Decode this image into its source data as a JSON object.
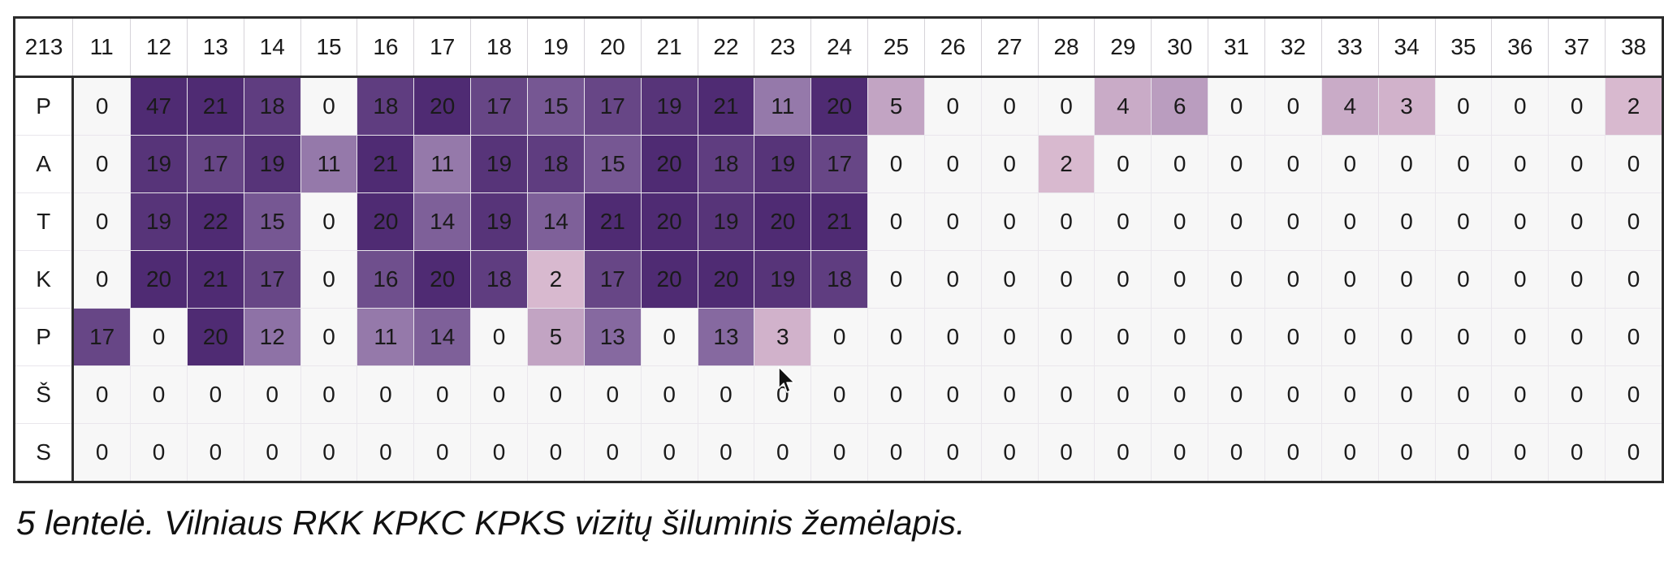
{
  "table": {
    "corner_label": "213",
    "columns": [
      "11",
      "12",
      "13",
      "14",
      "15",
      "16",
      "17",
      "18",
      "19",
      "20",
      "21",
      "22",
      "23",
      "24",
      "25",
      "26",
      "27",
      "28",
      "29",
      "30",
      "31",
      "32",
      "33",
      "34",
      "35",
      "36",
      "37",
      "38"
    ],
    "rows": [
      {
        "label": "P",
        "values": [
          0,
          47,
          21,
          18,
          0,
          18,
          20,
          17,
          15,
          17,
          19,
          21,
          11,
          20,
          5,
          0,
          0,
          0,
          4,
          6,
          0,
          0,
          4,
          3,
          0,
          0,
          0,
          2
        ]
      },
      {
        "label": "A",
        "values": [
          0,
          19,
          17,
          19,
          11,
          21,
          11,
          19,
          18,
          15,
          20,
          18,
          19,
          17,
          0,
          0,
          0,
          2,
          0,
          0,
          0,
          0,
          0,
          0,
          0,
          0,
          0,
          0
        ]
      },
      {
        "label": "T",
        "values": [
          0,
          19,
          22,
          15,
          0,
          20,
          14,
          19,
          14,
          21,
          20,
          19,
          20,
          21,
          0,
          0,
          0,
          0,
          0,
          0,
          0,
          0,
          0,
          0,
          0,
          0,
          0,
          0
        ]
      },
      {
        "label": "K",
        "values": [
          0,
          20,
          21,
          17,
          0,
          16,
          20,
          18,
          2,
          17,
          20,
          20,
          19,
          18,
          0,
          0,
          0,
          0,
          0,
          0,
          0,
          0,
          0,
          0,
          0,
          0,
          0,
          0
        ]
      },
      {
        "label": "P",
        "values": [
          17,
          0,
          20,
          12,
          0,
          11,
          14,
          0,
          5,
          13,
          0,
          13,
          3,
          0,
          0,
          0,
          0,
          0,
          0,
          0,
          0,
          0,
          0,
          0,
          0,
          0,
          0,
          0
        ]
      },
      {
        "label": "Š",
        "values": [
          0,
          0,
          0,
          0,
          0,
          0,
          0,
          0,
          0,
          0,
          0,
          0,
          0,
          0,
          0,
          0,
          0,
          0,
          0,
          0,
          0,
          0,
          0,
          0,
          0,
          0,
          0,
          0
        ]
      },
      {
        "label": "S",
        "values": [
          0,
          0,
          0,
          0,
          0,
          0,
          0,
          0,
          0,
          0,
          0,
          0,
          0,
          0,
          0,
          0,
          0,
          0,
          0,
          0,
          0,
          0,
          0,
          0,
          0,
          0,
          0,
          0
        ]
      }
    ]
  },
  "caption": "5 lentelė. Vilniaus RKK KPKC KPKS vizitų šiluminis žemėlapis.",
  "colors": {
    "zero_cell": "#f7f7f7",
    "low": "#d8b9cf",
    "mid": "#8e72a6",
    "high": "#4f2b73",
    "border": "#2b2b2b"
  },
  "icons": {
    "cursor": "mouse-pointer-icon"
  }
}
